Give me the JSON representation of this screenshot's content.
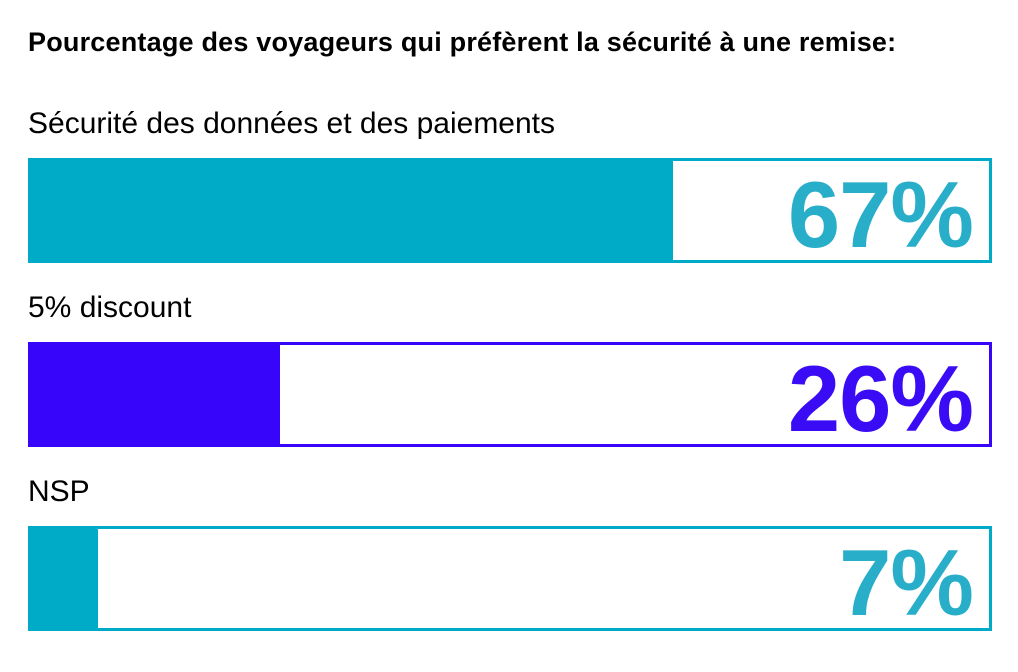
{
  "title": "Pourcentage des voyageurs qui préfèrent la sécurité à une remise:",
  "colors": {
    "background": "#ffffff",
    "title_text": "#000000",
    "label_text": "#000000",
    "teal": "#00ABC7",
    "blue": "#3705FA"
  },
  "chart_data": {
    "type": "bar",
    "orientation": "horizontal",
    "title": "Pourcentage des voyageurs qui préfèrent la sécurité à une remise:",
    "unit": "%",
    "xlim": [
      0,
      100
    ],
    "grid": false,
    "categories": [
      "Sécurité des données et des paiements",
      "5% discount",
      "NSP"
    ],
    "values": [
      67,
      26,
      7
    ],
    "bars": [
      {
        "label": "Sécurité des données et des paiements",
        "value": 67,
        "display": "67%",
        "fill_color": "#00ABC7",
        "value_color": "#29AEC9"
      },
      {
        "label": "5% discount",
        "value": 26,
        "display": "26%",
        "fill_color": "#3705FA",
        "value_color": "#3A0CF5"
      },
      {
        "label": "NSP",
        "value": 7,
        "display": "7%",
        "fill_color": "#00ABC7",
        "value_color": "#29AEC9"
      }
    ]
  }
}
